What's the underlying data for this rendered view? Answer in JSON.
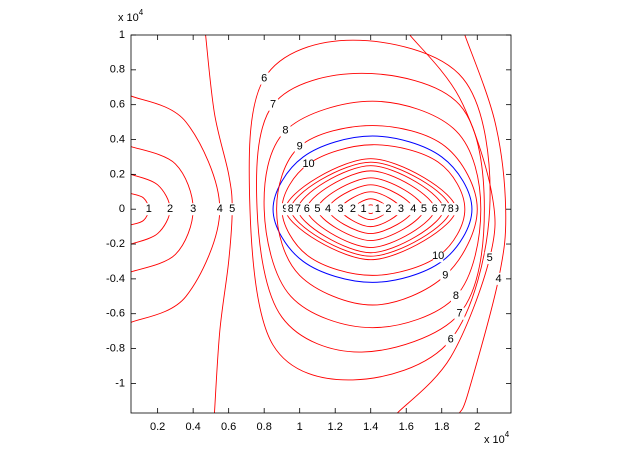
{
  "chart_data": {
    "type": "contour",
    "x_multiplier": {
      "base": "x 10",
      "exponent": "4"
    },
    "y_multiplier": {
      "base": "x 10",
      "exponent": "4"
    },
    "xlim": [
      0.05,
      2.19
    ],
    "ylim": [
      -1.17,
      1
    ],
    "xticks": [
      0.2,
      0.4,
      0.6,
      0.8,
      1,
      1.2,
      1.4,
      1.6,
      1.8,
      2
    ],
    "yticks": [
      -1,
      -0.8,
      -0.6,
      -0.4,
      -0.2,
      0,
      0.2,
      0.4,
      0.6,
      0.8,
      1
    ],
    "color": "#ff0000",
    "boundary": {
      "color": "#0000ff",
      "x": [
        1.41,
        1.02,
        0.85,
        1.02,
        1.41,
        1.8,
        1.97,
        1.8
      ],
      "y": [
        0.42,
        0.3,
        0,
        -0.3,
        -0.42,
        -0.3,
        0,
        0.3
      ]
    },
    "contours": [
      {
        "level": 1,
        "closed": false,
        "x": [
          0.05,
          0.12,
          0.15,
          0.12,
          0.05
        ],
        "y": [
          0.09,
          0.065,
          0,
          -0.065,
          -0.09
        ]
      },
      {
        "level": 2,
        "closed": false,
        "x": [
          0.05,
          0.2,
          0.27,
          0.2,
          0.05
        ],
        "y": [
          0.2,
          0.14,
          0,
          -0.14,
          -0.2
        ]
      },
      {
        "level": 3,
        "closed": false,
        "x": [
          0.05,
          0.3,
          0.4,
          0.3,
          0.05
        ],
        "y": [
          0.36,
          0.26,
          0,
          -0.26,
          -0.36
        ]
      },
      {
        "level": 4,
        "closed": false,
        "x": [
          0.05,
          0.36,
          0.55,
          0.36,
          0.05
        ],
        "y": [
          0.65,
          0.5,
          0,
          -0.5,
          -0.65
        ]
      },
      {
        "level": 5,
        "closed": false,
        "x": [
          0.47,
          0.52,
          0.6,
          0.62,
          0.6,
          0.55,
          0.52
        ],
        "y": [
          1,
          0.55,
          0.2,
          0,
          -0.3,
          -0.7,
          -1.17
        ]
      },
      {
        "level": 6,
        "closed": true,
        "x": [
          1.3,
          0.8,
          0.72,
          0.85,
          1.3,
          1.85,
          2.07,
          1.92
        ],
        "y": [
          0.97,
          0.75,
          0,
          -0.78,
          -0.98,
          -0.75,
          0,
          0.75
        ]
      },
      {
        "level": 7,
        "closed": true,
        "x": [
          1.35,
          0.85,
          0.76,
          0.9,
          1.35,
          1.9,
          2.04,
          1.9
        ],
        "y": [
          0.78,
          0.6,
          0,
          -0.62,
          -0.82,
          -0.6,
          0,
          0.6
        ]
      },
      {
        "level": 8,
        "closed": true,
        "x": [
          1.41,
          0.92,
          0.8,
          0.95,
          1.41,
          1.88,
          2.02,
          1.88
        ],
        "y": [
          0.62,
          0.45,
          0,
          -0.5,
          -0.68,
          -0.5,
          0,
          0.45
        ]
      },
      {
        "level": 9,
        "closed": true,
        "x": [
          1.41,
          1.0,
          0.87,
          1.0,
          1.41,
          1.82,
          2.0,
          1.82
        ],
        "y": [
          0.48,
          0.36,
          0,
          -0.38,
          -0.55,
          -0.38,
          0,
          0.36
        ]
      },
      {
        "level": 10,
        "closed": true,
        "x": [
          1.41,
          1.05,
          0.9,
          1.05,
          1.41,
          1.78,
          1.93,
          1.78
        ],
        "y": [
          0.37,
          0.26,
          0,
          -0.27,
          -0.38,
          -0.27,
          0,
          0.27
        ]
      },
      {
        "level": 9,
        "closed": true,
        "x": [
          1.4,
          0.92,
          1.4,
          1.88
        ],
        "y": [
          0.29,
          0,
          -0.29,
          0
        ]
      },
      {
        "level": 8,
        "closed": true,
        "x": [
          1.4,
          0.95,
          1.4,
          1.85
        ],
        "y": [
          0.27,
          0,
          -0.27,
          0
        ]
      },
      {
        "level": 7,
        "closed": true,
        "x": [
          1.4,
          0.99,
          1.4,
          1.81
        ],
        "y": [
          0.25,
          0,
          -0.25,
          0
        ]
      },
      {
        "level": 6,
        "closed": true,
        "x": [
          1.4,
          1.04,
          1.4,
          1.76
        ],
        "y": [
          0.22,
          0,
          -0.22,
          0
        ]
      },
      {
        "level": 5,
        "closed": true,
        "x": [
          1.4,
          1.1,
          1.4,
          1.7
        ],
        "y": [
          0.18,
          0,
          -0.18,
          0
        ]
      },
      {
        "level": 4,
        "closed": true,
        "x": [
          1.4,
          1.16,
          1.4,
          1.64
        ],
        "y": [
          0.14,
          0,
          -0.14,
          0
        ]
      },
      {
        "level": 3,
        "closed": true,
        "x": [
          1.4,
          1.23,
          1.4,
          1.57
        ],
        "y": [
          0.1,
          0,
          -0.1,
          0
        ]
      },
      {
        "level": 2,
        "closed": true,
        "x": [
          1.4,
          1.3,
          1.4,
          1.5
        ],
        "y": [
          0.06,
          0,
          -0.06,
          0
        ]
      },
      {
        "level": 1,
        "closed": true,
        "x": [
          1.4,
          1.36,
          1.4,
          1.44
        ],
        "y": [
          0.025,
          0,
          -0.025,
          0
        ]
      },
      {
        "level": 5,
        "closed": false,
        "x": [
          1.62,
          1.9,
          2.08,
          2.07,
          1.85,
          1.55
        ],
        "y": [
          1,
          0.64,
          0.1,
          -0.28,
          -0.85,
          -1.17
        ]
      },
      {
        "level": 4,
        "closed": false,
        "x": [
          1.93,
          2.1,
          2.16,
          2.12,
          1.95,
          1.9
        ],
        "y": [
          1,
          0.5,
          0,
          -0.4,
          -1.05,
          -1.17
        ]
      }
    ]
  }
}
